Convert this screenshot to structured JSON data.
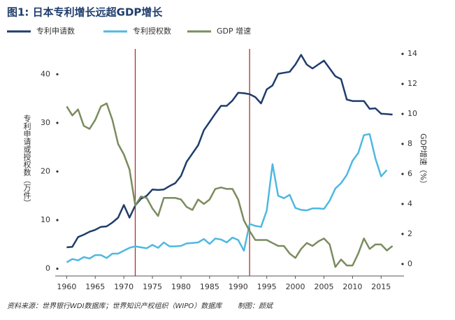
{
  "chart_data": {
    "type": "line",
    "title": "图1: 日本专利增长远超GDP增长",
    "y_label": "专利申请或授权数（万件）",
    "y2_label": "GDP增速（%）",
    "source": "资料来源：世界银行WDI数据库；世界知识产权组织（WIPO）数据库",
    "credit": "制图：颜斌",
    "x": [
      1960,
      1961,
      1962,
      1963,
      1964,
      1965,
      1966,
      1967,
      1968,
      1969,
      1970,
      1971,
      1972,
      1973,
      1974,
      1975,
      1976,
      1977,
      1978,
      1979,
      1980,
      1981,
      1982,
      1983,
      1984,
      1985,
      1986,
      1987,
      1988,
      1989,
      1990,
      1991,
      1992,
      1993,
      1994,
      1995,
      1996,
      1997,
      1998,
      1999,
      2000,
      2001,
      2002,
      2003,
      2004,
      2005,
      2006,
      2007,
      2008,
      2009,
      2010,
      2011,
      2012,
      2013,
      2014,
      2015,
      2016,
      2017
    ],
    "series": [
      {
        "name": "专利申请数",
        "color": "#1f3d6b",
        "values": [
          4.4,
          4.5,
          6.5,
          7.0,
          7.6,
          8.0,
          8.6,
          8.7,
          9.5,
          10.5,
          13.1,
          10.5,
          13.0,
          14.4,
          15.0,
          16.3,
          16.2,
          16.3,
          17.0,
          17.6,
          19.1,
          22.0,
          23.7,
          25.4,
          28.5,
          30.2,
          31.9,
          33.5,
          33.5,
          34.6,
          36.2,
          36.1,
          35.9,
          35.3,
          34.0,
          36.9,
          37.7,
          40.1,
          40.3,
          40.5,
          42.0,
          44.0,
          42.0,
          41.2,
          42.0,
          42.8,
          41.2,
          39.6,
          39.0,
          34.8,
          34.5,
          34.5,
          34.5,
          32.9,
          33.0,
          31.9,
          31.8,
          31.7
        ]
      },
      {
        "name": "专利授权数",
        "color": "#4fb8e0",
        "values": [
          1.3,
          2.0,
          1.7,
          2.4,
          2.1,
          2.8,
          2.8,
          2.2,
          3.1,
          3.1,
          3.7,
          4.3,
          4.6,
          4.4,
          4.2,
          4.9,
          4.3,
          5.4,
          4.6,
          4.6,
          4.7,
          5.2,
          5.3,
          5.4,
          6.1,
          5.1,
          6.2,
          6.0,
          5.4,
          6.4,
          5.9,
          3.7,
          9.2,
          8.8,
          8.6,
          12.0,
          21.5,
          15.0,
          14.5,
          15.2,
          12.5,
          12.1,
          12.0,
          12.4,
          12.4,
          12.3,
          14.0,
          16.5,
          17.6,
          19.3,
          22.2,
          23.8,
          27.5,
          27.7,
          22.7,
          19.0,
          20.3,
          null
        ]
      },
      {
        "name": "GDP 增速",
        "color": "#7a8c5e",
        "axis": "y2",
        "values": [
          10.5,
          9.9,
          10.3,
          9.2,
          9.0,
          9.6,
          10.5,
          10.7,
          9.6,
          8.0,
          7.3,
          6.3,
          3.9,
          4.5,
          4.4,
          3.7,
          3.2,
          4.4,
          4.4,
          4.4,
          4.3,
          3.8,
          3.6,
          4.3,
          4.0,
          4.3,
          5.0,
          5.1,
          5.0,
          5.0,
          4.3,
          2.9,
          2.2,
          1.6,
          1.6,
          1.6,
          1.4,
          1.2,
          1.2,
          0.7,
          0.4,
          1.0,
          1.4,
          1.2,
          1.5,
          1.7,
          1.3,
          -0.2,
          0.3,
          -0.1,
          -0.1,
          0.7,
          1.7,
          1.0,
          1.3,
          1.3,
          0.9,
          1.2
        ]
      }
    ],
    "vlines": [
      1972,
      1992
    ],
    "vline_color": "#a8322d",
    "xlim": [
      1958,
      2019
    ],
    "xticks": [
      1960,
      1965,
      1970,
      1975,
      1980,
      1985,
      1990,
      1995,
      2000,
      2005,
      2010,
      2015
    ],
    "ylim": [
      -1.5,
      44.5
    ],
    "yticks": [
      0,
      10,
      20,
      30,
      40
    ],
    "y2lim": [
      -0.8,
      14.1
    ],
    "y2ticks": [
      0,
      2,
      4,
      6,
      8,
      10,
      12,
      14
    ]
  }
}
